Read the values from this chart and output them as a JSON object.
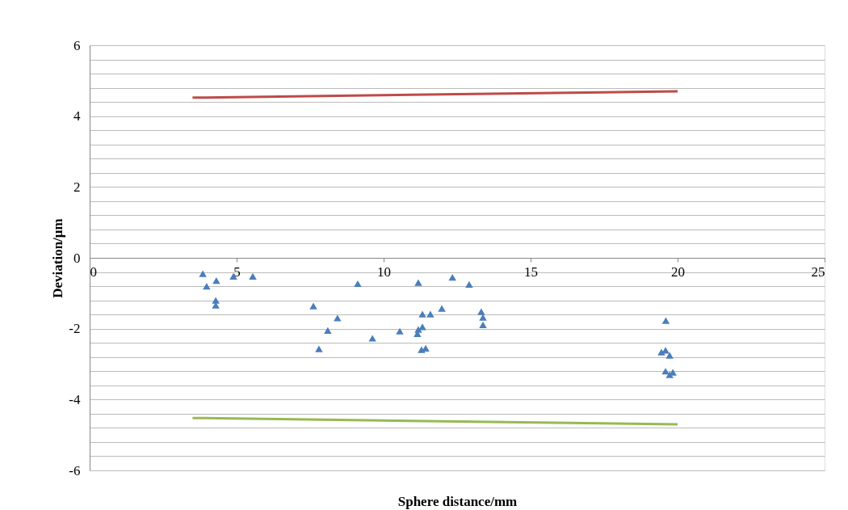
{
  "chart_data": {
    "type": "scatter",
    "xlabel": "Sphere distance/mm",
    "ylabel": "Deviation/µm",
    "xlim": [
      0,
      25
    ],
    "xticks": [
      0,
      5,
      10,
      15,
      20,
      25
    ],
    "ylim": [
      -6,
      6
    ],
    "yticks": [
      -6,
      {
        "value": -5.6,
        "label": null
      },
      {
        "value": -5.2,
        "label": null
      },
      {
        "value": -4.8,
        "label": null
      },
      {
        "value": -4.4,
        "label": null
      },
      -4,
      {
        "value": -3.6,
        "label": null
      },
      {
        "value": -3.2,
        "label": null
      },
      {
        "value": -2.8,
        "label": null
      },
      {
        "value": -2.4,
        "label": null
      },
      -2,
      {
        "value": -1.6,
        "label": null
      },
      {
        "value": -1.2,
        "label": null
      },
      {
        "value": -0.8,
        "label": null
      },
      {
        "value": -0.4,
        "label": null
      },
      0,
      {
        "value": 0.4,
        "label": null
      },
      {
        "value": 0.8,
        "label": null
      },
      {
        "value": 1.2,
        "label": null
      },
      {
        "value": 1.6,
        "label": null
      },
      2,
      {
        "value": 2.4,
        "label": null
      },
      {
        "value": 2.8,
        "label": null
      },
      {
        "value": 3.2,
        "label": null
      },
      {
        "value": 3.6,
        "label": null
      },
      4,
      {
        "value": 4.4,
        "label": null
      },
      {
        "value": 4.8,
        "label": null
      },
      {
        "value": 5.2,
        "label": null
      },
      {
        "value": 5.6,
        "label": null
      },
      6
    ],
    "grid": "y",
    "series": [
      {
        "marker": "triangle",
        "color": "#4a7ebb",
        "x": [
          3.85,
          3.98,
          4.31,
          4.29,
          4.29,
          4.89,
          5.55,
          7.61,
          7.8,
          8.1,
          8.43,
          9.12,
          9.62,
          10.55,
          11.18,
          11.15,
          11.18,
          11.32,
          11.32,
          11.29,
          11.43,
          11.59,
          11.98,
          12.34,
          12.91,
          13.32,
          13.38,
          13.38,
          19.6,
          19.45,
          19.59,
          19.73,
          19.59,
          19.73,
          19.84
        ],
        "values": [
          -0.45,
          -0.8,
          -0.64,
          -1.2,
          -1.34,
          -0.52,
          -0.52,
          -1.36,
          -2.57,
          -2.05,
          -1.7,
          -0.73,
          -2.27,
          -2.07,
          -0.7,
          -2.14,
          -2.02,
          -1.95,
          -1.59,
          -2.59,
          -2.55,
          -1.59,
          -1.43,
          -0.55,
          -0.75,
          -1.52,
          -1.68,
          -1.89,
          -1.77,
          -2.66,
          -2.61,
          -2.75,
          -3.2,
          -3.3,
          -3.23
        ]
      },
      {
        "type": "line",
        "marker": "none",
        "line_style": "solid",
        "color": "#be4b48",
        "x": [
          3.5,
          20
        ],
        "values": [
          4.52,
          4.7
        ]
      },
      {
        "type": "line",
        "marker": "none",
        "line_style": "solid",
        "color": "#98b954",
        "x": [
          3.5,
          20
        ],
        "values": [
          -4.52,
          -4.7
        ]
      }
    ]
  }
}
